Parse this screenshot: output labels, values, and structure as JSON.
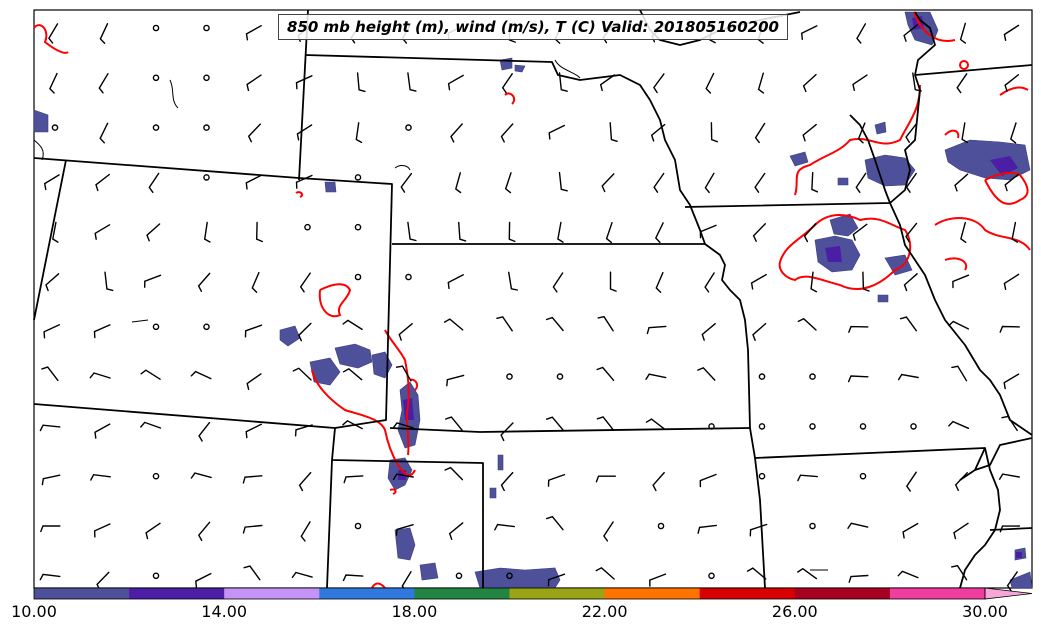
{
  "title": "850 mb height (m), wind (m/s), T (C) Valid: 201805160200",
  "colorbar": {
    "tick_labels": [
      "10.00",
      "14.00",
      "18.00",
      "22.00",
      "26.00",
      "30.00"
    ],
    "tick_values": [
      10,
      14,
      18,
      22,
      26,
      30
    ],
    "min": 10,
    "max": 30,
    "extend": "max",
    "colors": [
      "#4e5199",
      "#4b1ea5",
      "#c593f5",
      "#2f78de",
      "#238544",
      "#9aa414",
      "#ff7300",
      "#d80000",
      "#a80020",
      "#f03ea0"
    ],
    "extend_color": "#f7a6d8"
  },
  "colors": {
    "outline": "#000000",
    "temperature_contour": "#ff0000",
    "shading_base": "#4e5199",
    "shading_core": "#4b1ea5"
  },
  "icons": {
    "wind": "wind-barb-icon",
    "calm": "calm-circle-icon"
  }
}
